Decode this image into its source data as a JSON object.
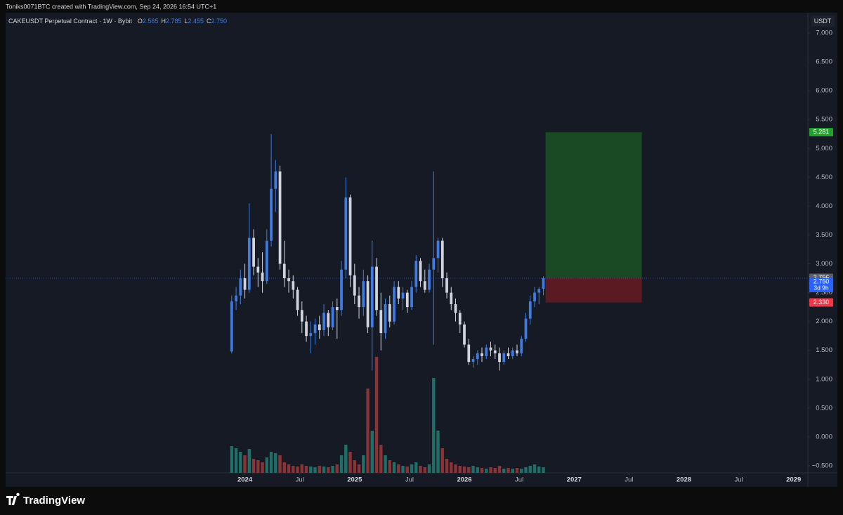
{
  "header": "Toniks0071BTC created with TradingView.com, Sep 24, 2026 16:54 UTC+1",
  "footer_brand": "TradingView",
  "chart_data": {
    "type": "candlestick",
    "title": "CAKEUSDT Perpetual Contract · 1W · Bybit",
    "legend_values": [
      {
        "name": "O",
        "value": 2.565
      },
      {
        "name": "H",
        "value": 2.785
      },
      {
        "name": "L",
        "value": 2.455
      },
      {
        "name": "C",
        "value": 2.75,
        "label": "2.750"
      }
    ],
    "currency": "USDT",
    "up_color": "#3f7be0",
    "down_color": "#d1d4dc",
    "volume_up_color": "#1f6f68",
    "volume_down_color": "#8a3437",
    "x": [
      2023.88,
      2023.92,
      2023.96,
      2024,
      2024.04,
      2024.08,
      2024.12,
      2024.16,
      2024.2,
      2024.24,
      2024.28,
      2024.32,
      2024.36,
      2024.4,
      2024.44,
      2024.48,
      2024.52,
      2024.56,
      2024.6,
      2024.64,
      2024.68,
      2024.72,
      2024.76,
      2024.8,
      2024.84,
      2024.88,
      2024.92,
      2024.96,
      2025,
      2025.04,
      2025.08,
      2025.12,
      2025.16,
      2025.2,
      2025.24,
      2025.28,
      2025.32,
      2025.36,
      2025.4,
      2025.44,
      2025.48,
      2025.52,
      2025.56,
      2025.6,
      2025.64,
      2025.68,
      2025.72,
      2025.76,
      2025.8,
      2025.84,
      2025.88,
      2025.92,
      2025.96,
      2026,
      2026.04,
      2026.08,
      2026.12,
      2026.16,
      2026.2,
      2026.24,
      2026.28,
      2026.32,
      2026.36,
      2026.4,
      2026.44,
      2026.48,
      2026.52,
      2026.56,
      2026.6,
      2026.64,
      2026.68,
      2026.72
    ],
    "open": [
      1.48,
      2.35,
      2.45,
      2.75,
      2.55,
      3.45,
      2.95,
      2.85,
      2.7,
      3.4,
      4.3,
      4.6,
      3.0,
      2.75,
      2.7,
      2.55,
      2.2,
      2.0,
      1.75,
      1.8,
      1.95,
      1.85,
      2.15,
      1.9,
      2.25,
      2.2,
      2.9,
      4.15,
      2.8,
      2.45,
      2.25,
      2.7,
      1.9,
      2.95,
      2.2,
      1.8,
      2.3,
      2.0,
      2.6,
      2.4,
      2.5,
      2.25,
      2.6,
      3.05,
      2.7,
      2.55,
      2.9,
      3.1,
      3.4,
      2.75,
      2.5,
      2.3,
      2.15,
      1.95,
      1.6,
      1.3,
      1.35,
      1.45,
      1.4,
      1.55,
      1.5,
      1.45,
      1.3,
      1.45,
      1.4,
      1.5,
      1.45,
      1.7,
      2.05,
      2.35,
      2.5,
      2.565
    ],
    "high": [
      2.45,
      2.6,
      2.9,
      3.0,
      4.05,
      3.6,
      3.1,
      3.2,
      3.6,
      5.25,
      4.8,
      4.7,
      3.4,
      2.9,
      2.8,
      2.6,
      2.35,
      2.1,
      2.0,
      2.05,
      2.1,
      2.3,
      2.2,
      2.35,
      2.4,
      3.05,
      4.5,
      4.2,
      3.0,
      2.6,
      2.9,
      2.8,
      3.4,
      3.1,
      2.5,
      2.4,
      2.45,
      2.7,
      2.7,
      2.6,
      2.55,
      2.7,
      3.15,
      3.1,
      2.9,
      3.0,
      4.6,
      3.45,
      3.45,
      2.85,
      2.6,
      2.4,
      2.2,
      2.0,
      1.7,
      1.4,
      1.5,
      1.55,
      1.6,
      1.65,
      1.6,
      1.55,
      1.5,
      1.55,
      1.55,
      1.6,
      1.75,
      2.15,
      2.45,
      2.6,
      2.6,
      2.785
    ],
    "low": [
      1.45,
      2.2,
      2.3,
      2.4,
      2.5,
      2.8,
      2.6,
      2.5,
      2.65,
      3.3,
      3.9,
      2.9,
      2.6,
      2.5,
      2.4,
      2.1,
      1.8,
      1.65,
      1.45,
      1.6,
      1.7,
      1.75,
      1.75,
      1.85,
      1.7,
      2.1,
      2.75,
      2.6,
      2.3,
      2.05,
      2.1,
      1.8,
      1.15,
      2.1,
      1.5,
      1.7,
      1.9,
      1.95,
      2.3,
      2.2,
      2.15,
      2.2,
      2.5,
      2.6,
      2.5,
      2.5,
      1.6,
      2.85,
      2.6,
      2.4,
      2.2,
      2.0,
      1.8,
      1.55,
      1.25,
      1.2,
      1.25,
      1.3,
      1.35,
      1.4,
      1.35,
      1.15,
      1.25,
      1.35,
      1.35,
      1.4,
      1.4,
      1.65,
      1.95,
      2.25,
      2.3,
      2.455
    ],
    "close": [
      2.35,
      2.45,
      2.75,
      2.55,
      3.45,
      2.95,
      2.85,
      2.7,
      3.4,
      4.3,
      4.6,
      3.0,
      2.75,
      2.7,
      2.55,
      2.2,
      2.0,
      1.75,
      1.8,
      1.95,
      1.85,
      2.15,
      1.9,
      2.25,
      2.2,
      2.9,
      4.15,
      2.8,
      2.45,
      2.25,
      2.7,
      1.9,
      2.95,
      2.2,
      1.8,
      2.3,
      2.0,
      2.6,
      2.4,
      2.5,
      2.25,
      2.6,
      3.05,
      2.7,
      2.55,
      2.9,
      3.1,
      3.4,
      2.75,
      2.5,
      2.3,
      2.15,
      1.95,
      1.6,
      1.3,
      1.35,
      1.45,
      1.4,
      1.55,
      1.5,
      1.45,
      1.3,
      1.45,
      1.4,
      1.5,
      1.45,
      1.7,
      2.05,
      2.35,
      2.5,
      2.565,
      2.75
    ],
    "volume": [
      38,
      35,
      30,
      25,
      34,
      20,
      18,
      15,
      22,
      30,
      28,
      25,
      15,
      12,
      10,
      9,
      12,
      10,
      9,
      8,
      10,
      9,
      8,
      10,
      12,
      25,
      40,
      30,
      18,
      12,
      25,
      120,
      60,
      165,
      40,
      25,
      18,
      15,
      12,
      10,
      9,
      12,
      15,
      10,
      8,
      12,
      135,
      60,
      35,
      20,
      15,
      12,
      10,
      9,
      8,
      10,
      8,
      7,
      6,
      8,
      7,
      10,
      6,
      7,
      6,
      7,
      6,
      8,
      10,
      12,
      9,
      8
    ],
    "position": {
      "xlim": [
        2026.74,
        2027.617
      ],
      "target": 5.281,
      "entry": 2.756,
      "stop": 2.33,
      "stop_label": "2.330",
      "target_color": "#1a4a24",
      "stop_color": "#5a1a22",
      "target_tag_color": "#22a12a",
      "entry_tag_color": "#5d606b",
      "stop_tag_color": "#f23645"
    },
    "last_price": {
      "value": 2.75,
      "label": "2.750",
      "countdown": "3d 9h",
      "color": "#2962ff"
    },
    "xlim": [
      2021.82,
      2029.13
    ],
    "ylim": [
      -0.622,
      7.353
    ],
    "xticks": [
      2024,
      {
        "value": 2024.5,
        "label": "Jul"
      },
      2025,
      {
        "value": 2025.5,
        "label": "Jul"
      },
      2026,
      {
        "value": 2026.5,
        "label": "Jul"
      },
      2027,
      {
        "value": 2027.5,
        "label": "Jul"
      },
      2028,
      {
        "value": 2028.5,
        "label": "Jul"
      },
      2029
    ],
    "yticks": [
      {
        "value": 7,
        "label": "7.000"
      },
      {
        "value": 6.5,
        "label": "6.500"
      },
      {
        "value": 6,
        "label": "6.000"
      },
      {
        "value": 5.5,
        "label": "5.500"
      },
      {
        "value": 5,
        "label": "5.000"
      },
      {
        "value": 4.5,
        "label": "4.500"
      },
      {
        "value": 4,
        "label": "4.000"
      },
      {
        "value": 3.5,
        "label": "3.500"
      },
      {
        "value": 3,
        "label": "3.000"
      },
      {
        "value": 2.5,
        "label": "2.500"
      },
      {
        "value": 2,
        "label": "2.000"
      },
      {
        "value": 1.5,
        "label": "1.500"
      },
      {
        "value": 1,
        "label": "1.000"
      },
      {
        "value": 0.5,
        "label": "0.500"
      },
      {
        "value": 0,
        "label": "0.000"
      },
      {
        "value": -0.5,
        "label": "−0.500"
      }
    ]
  }
}
